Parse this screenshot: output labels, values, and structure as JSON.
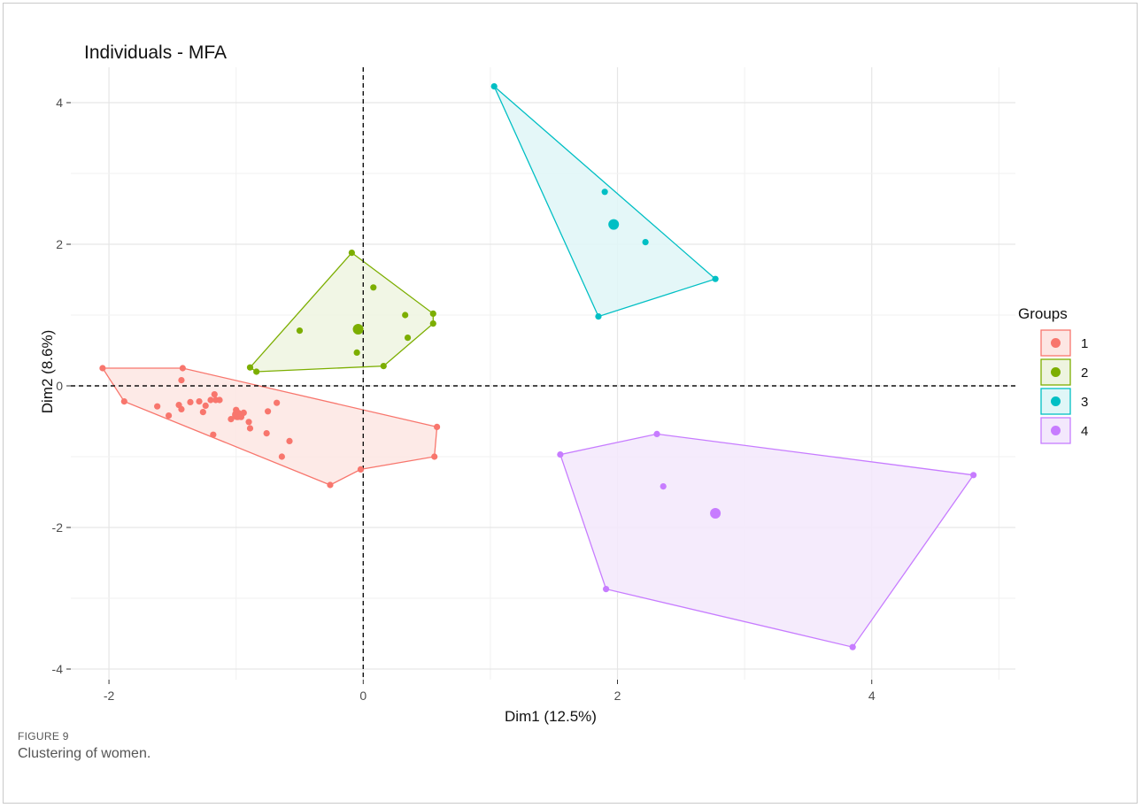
{
  "figure": {
    "label": "FIGURE 9",
    "caption": "Clustering of women."
  },
  "chart_data": {
    "type": "scatter",
    "title": "Individuals - MFA",
    "xlabel": "Dim1 (12.5%)",
    "ylabel": "Dim2 (8.6%)",
    "xlim": [
      -2.3,
      5.13
    ],
    "ylim": [
      -4.15,
      4.5
    ],
    "xticks": [
      -2,
      0,
      2,
      4
    ],
    "yticks": [
      -4,
      -2,
      0,
      2,
      4
    ],
    "grid": true,
    "reference_lines": {
      "x": 0,
      "y": 0,
      "style": "dashed"
    },
    "legend": {
      "title": "Groups",
      "position": "right"
    },
    "groups": [
      {
        "name": "1",
        "color": "#F8766D",
        "fill": "#FDE6E3",
        "hull": [
          [
            -2.05,
            0.25
          ],
          [
            -1.42,
            0.25
          ],
          [
            0.58,
            -0.58
          ],
          [
            0.56,
            -1.0
          ],
          [
            -0.02,
            -1.18
          ],
          [
            -0.26,
            -1.4
          ],
          [
            -1.88,
            -0.22
          ]
        ],
        "points": [
          [
            -2.05,
            0.25
          ],
          [
            -1.42,
            0.25
          ],
          [
            -1.43,
            0.08
          ],
          [
            -1.88,
            -0.22
          ],
          [
            -1.62,
            -0.29
          ],
          [
            -1.53,
            -0.42
          ],
          [
            -1.45,
            -0.27
          ],
          [
            -1.43,
            -0.33
          ],
          [
            -1.36,
            -0.23
          ],
          [
            -1.29,
            -0.22
          ],
          [
            -1.26,
            -0.37
          ],
          [
            -1.24,
            -0.28
          ],
          [
            -1.2,
            -0.2
          ],
          [
            -1.17,
            -0.12
          ],
          [
            -1.16,
            -0.2
          ],
          [
            -1.18,
            -0.69
          ],
          [
            -1.13,
            -0.2
          ],
          [
            -1.04,
            -0.47
          ],
          [
            -1.0,
            -0.34
          ],
          [
            -0.98,
            -0.4
          ],
          [
            -0.96,
            -0.44
          ],
          [
            -0.94,
            -0.38
          ],
          [
            -0.9,
            -0.51
          ],
          [
            -0.89,
            -0.6
          ],
          [
            -0.76,
            -0.67
          ],
          [
            -0.75,
            -0.36
          ],
          [
            -0.68,
            -0.24
          ],
          [
            -0.64,
            -1.0
          ],
          [
            -0.58,
            -0.78
          ],
          [
            -0.26,
            -1.4
          ],
          [
            -0.02,
            -1.18
          ],
          [
            0.56,
            -1.0
          ],
          [
            0.58,
            -0.58
          ]
        ],
        "centroid": [
          -0.99,
          -0.41
        ]
      },
      {
        "name": "2",
        "color": "#7CAE00",
        "fill": "#EEF4E0",
        "hull": [
          [
            -0.09,
            1.88
          ],
          [
            0.55,
            1.02
          ],
          [
            0.55,
            0.88
          ],
          [
            0.16,
            0.28
          ],
          [
            -0.84,
            0.2
          ],
          [
            -0.89,
            0.26
          ]
        ],
        "points": [
          [
            -0.09,
            1.88
          ],
          [
            0.08,
            1.39
          ],
          [
            0.33,
            1.0
          ],
          [
            0.55,
            1.02
          ],
          [
            0.55,
            0.88
          ],
          [
            -0.5,
            0.78
          ],
          [
            0.35,
            0.68
          ],
          [
            -0.05,
            0.47
          ],
          [
            0.16,
            0.28
          ],
          [
            -0.89,
            0.26
          ],
          [
            -0.84,
            0.2
          ]
        ],
        "centroid": [
          -0.04,
          0.8
        ]
      },
      {
        "name": "3",
        "color": "#00BFC4",
        "fill": "#DFF6F7",
        "hull": [
          [
            1.03,
            4.23
          ],
          [
            2.77,
            1.51
          ],
          [
            1.85,
            0.98
          ]
        ],
        "points": [
          [
            1.03,
            4.23
          ],
          [
            1.9,
            2.74
          ],
          [
            2.22,
            2.03
          ],
          [
            2.77,
            1.51
          ],
          [
            1.85,
            0.98
          ]
        ],
        "centroid": [
          1.97,
          2.28
        ]
      },
      {
        "name": "4",
        "color": "#C77CFF",
        "fill": "#F3E8FC",
        "hull": [
          [
            1.55,
            -0.97
          ],
          [
            2.31,
            -0.68
          ],
          [
            4.8,
            -1.26
          ],
          [
            3.85,
            -3.69
          ],
          [
            1.91,
            -2.87
          ]
        ],
        "points": [
          [
            1.55,
            -0.97
          ],
          [
            2.31,
            -0.68
          ],
          [
            2.36,
            -1.42
          ],
          [
            4.8,
            -1.26
          ],
          [
            1.91,
            -2.87
          ],
          [
            3.85,
            -3.69
          ]
        ],
        "centroid": [
          2.77,
          -1.8
        ]
      }
    ]
  }
}
